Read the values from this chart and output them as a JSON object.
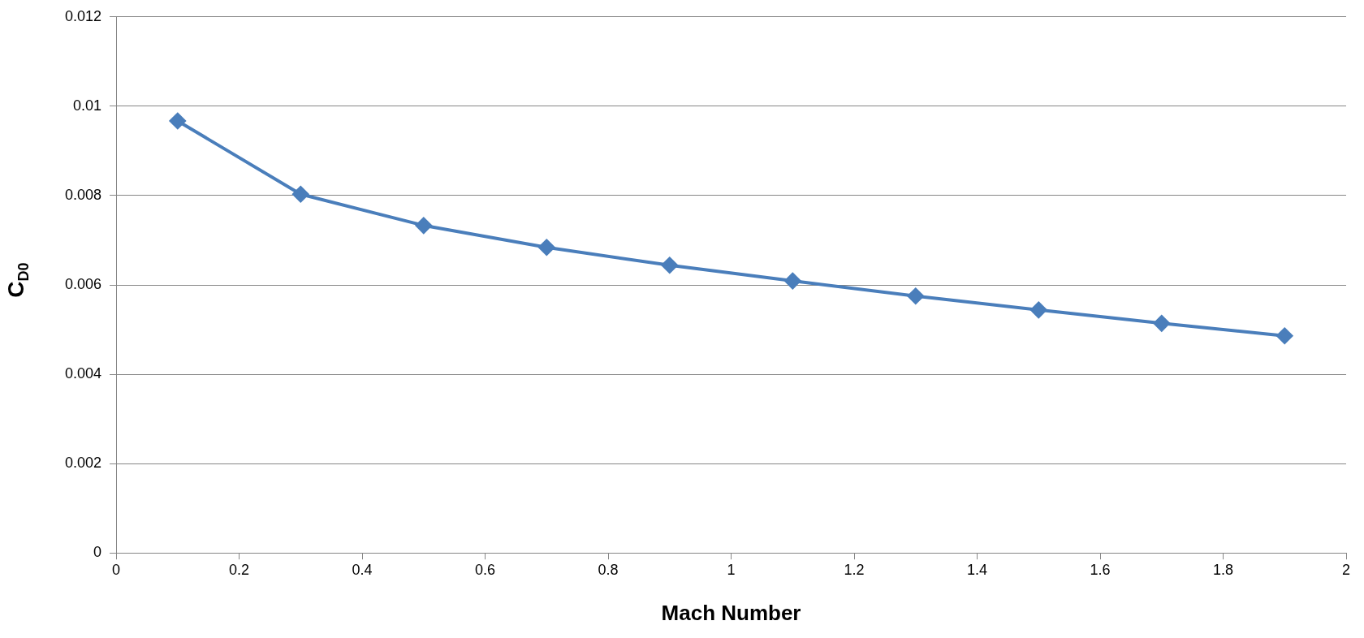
{
  "chart_data": {
    "type": "line",
    "xlabel": "Mach Number",
    "ylabel": "C$_{D0}$",
    "x": [
      0.1,
      0.3,
      0.5,
      0.7,
      0.9,
      1.1,
      1.3,
      1.5,
      1.7,
      1.9
    ],
    "series": [
      {
        "color": "#4a7ebb",
        "values": [
          0.00967,
          0.00803,
          0.00733,
          0.00684,
          0.00644,
          0.00609,
          0.00575,
          0.00544,
          0.00514,
          0.00486
        ]
      }
    ],
    "xlim": [
      0,
      2
    ],
    "xticks": [
      0,
      0.2,
      0.4,
      0.6,
      0.8,
      1,
      1.2,
      1.4,
      1.6,
      1.8,
      2
    ],
    "ylim": [
      0,
      0.012
    ],
    "yticks": [
      0,
      0.002,
      0.004,
      0.006,
      0.008,
      0.01,
      0.012
    ],
    "grid": "y",
    "legend": false,
    "marker": "diamond",
    "line_style": "solid"
  }
}
